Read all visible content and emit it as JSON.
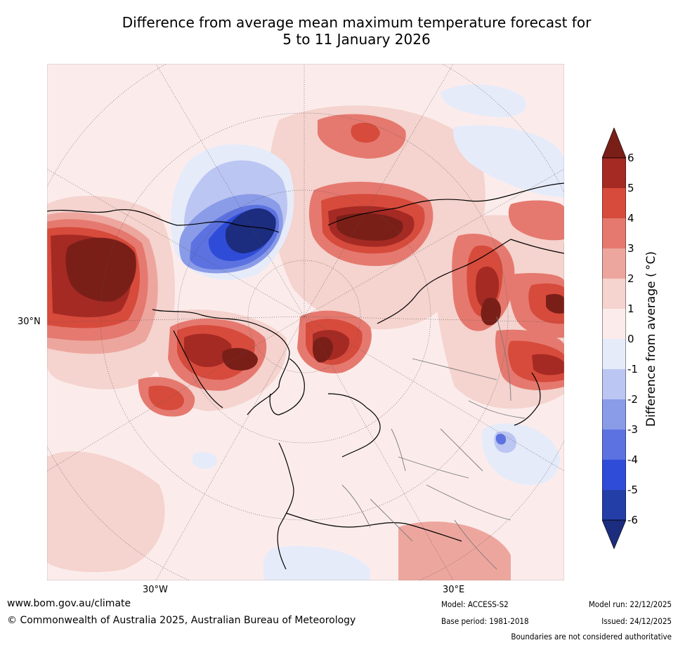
{
  "title": {
    "line1": "Difference from average mean maximum temperature forecast for",
    "line2": "5 to 11 January 2026"
  },
  "map": {
    "projection": "polar-stereographic-north",
    "tick_labels": {
      "lat_30n": "30°N",
      "lon_30w": "30°W",
      "lon_30e": "30°E"
    }
  },
  "colorbar": {
    "label": "Difference from average ( °C)",
    "ticks": [
      "6",
      "5",
      "4",
      "3",
      "2",
      "1",
      "0",
      "-1",
      "-2",
      "-3",
      "-4",
      "-5",
      "-6"
    ],
    "colors": {
      "gt6": "#7a1f18",
      "5_6": "#a52a24",
      "4_5": "#d74b3c",
      "3_4": "#e5796f",
      "2_3": "#eda69e",
      "1_2": "#f5d3ce",
      "0_1": "#fbeceb",
      "m1_0": "#e6ebfa",
      "m2_m1": "#bcc6f2",
      "m3_m2": "#8a9be8",
      "m4_m3": "#5c72e0",
      "m5_m4": "#2f4cd9",
      "m6_m5": "#243ea8",
      "lt_m6": "#1c2c7e"
    }
  },
  "footer": {
    "website": "www.bom.gov.au/climate",
    "copyright": "© Commonwealth of Australia 2025, Australian Bureau of Meteorology",
    "model": "Model: ACCESS-S2",
    "base_period": "Base period: 1981-2018",
    "model_run": "Model run: 22/12/2025",
    "issued": "Issued: 24/12/2025",
    "disclaimer": "Boundaries are not considered authoritative"
  }
}
